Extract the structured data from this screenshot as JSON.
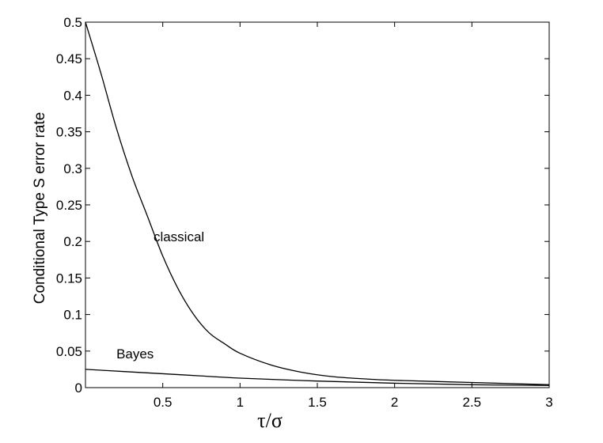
{
  "chart_data": {
    "type": "line",
    "title": "",
    "xlabel": "τ/σ",
    "ylabel": "Conditional Type S error rate",
    "xlim": [
      0,
      3
    ],
    "ylim": [
      0,
      0.5
    ],
    "x_ticks": [
      0.5,
      1,
      1.5,
      2,
      2.5,
      3
    ],
    "x_tick_labels": [
      "0.5",
      "1",
      "1.5",
      "2",
      "2.5",
      "3"
    ],
    "y_ticks": [
      0,
      0.05,
      0.1,
      0.15,
      0.2,
      0.25,
      0.3,
      0.35,
      0.4,
      0.45,
      0.5
    ],
    "y_tick_labels": [
      "0",
      "0.05",
      "0.1",
      "0.15",
      "0.2",
      "0.25",
      "0.3",
      "0.35",
      "0.4",
      "0.45",
      "0.5"
    ],
    "grid": false,
    "series": [
      {
        "name": "classical",
        "color": "#000000",
        "x": [
          0,
          0.1,
          0.2,
          0.3,
          0.4,
          0.5,
          0.6,
          0.7,
          0.8,
          0.9,
          1.0,
          1.2,
          1.4,
          1.6,
          1.8,
          2.0,
          2.5,
          3.0
        ],
        "y": [
          0.5,
          0.43,
          0.355,
          0.29,
          0.235,
          0.18,
          0.135,
          0.1,
          0.075,
          0.06,
          0.047,
          0.031,
          0.021,
          0.015,
          0.012,
          0.01,
          0.007,
          0.004
        ]
      },
      {
        "name": "Bayes",
        "color": "#000000",
        "x": [
          0,
          0.25,
          0.5,
          0.75,
          1.0,
          1.5,
          2.0,
          2.5,
          3.0
        ],
        "y": [
          0.025,
          0.022,
          0.019,
          0.016,
          0.013,
          0.009,
          0.006,
          0.004,
          0.003
        ]
      }
    ],
    "annotations": [
      {
        "text": "classical",
        "x": 0.44,
        "y": 0.2
      },
      {
        "text": "Bayes",
        "x": 0.2,
        "y": 0.04
      }
    ]
  }
}
